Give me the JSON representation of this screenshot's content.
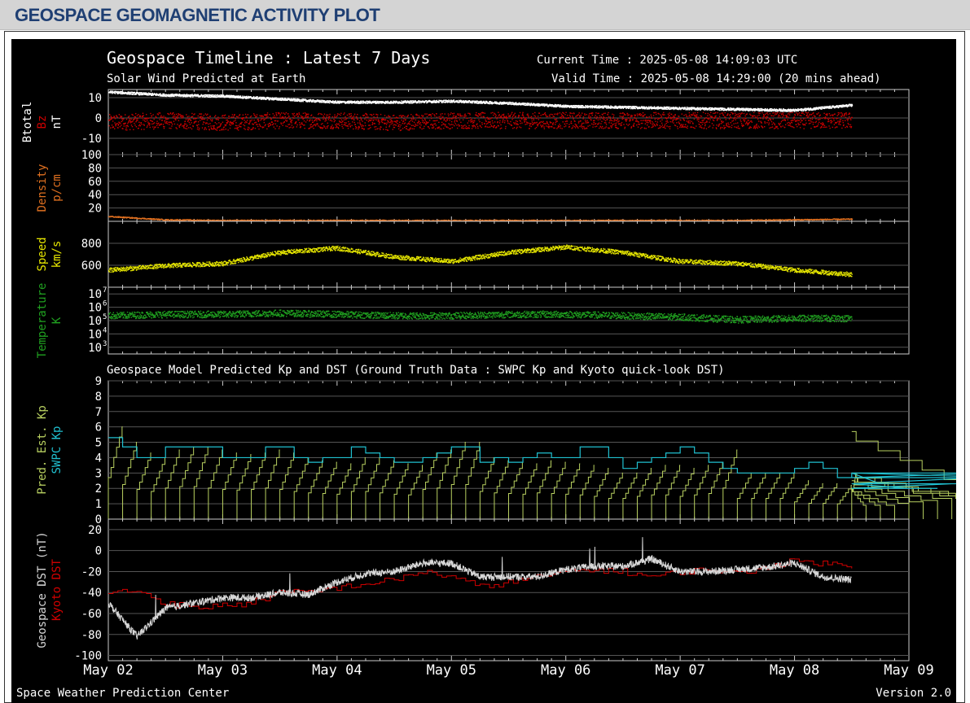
{
  "header": {
    "title": "GEOSPACE GEOMAGNETIC ACTIVITY PLOT"
  },
  "plot": {
    "title": "Geospace Timeline : Latest 7 Days",
    "subtitle": "Solar Wind Predicted at Earth",
    "current_time": "Current Time : 2025-05-08 14:09:03 UTC",
    "valid_time": "Valid Time : 2025-05-08 14:29:00 (20 mins ahead)",
    "section2_title": "Geospace Model Predicted Kp and DST (Ground Truth Data : SWPC Kp and Kyoto quick-look DST)",
    "footer_left": "Space Weather Prediction Center",
    "footer_right": "Version 2.0",
    "x_ticks": [
      "May 02",
      "May 03",
      "May 04",
      "May 05",
      "May 06",
      "May 07",
      "May 08",
      "May 09"
    ]
  },
  "colors": {
    "background": "#000000",
    "btotal": "#ffffff",
    "bz": "#cc0000",
    "density": "#e07020",
    "speed": "#e8e800",
    "temperature": "#20a020",
    "pred_kp": "#b8d060",
    "swpc_kp": "#20c0d0",
    "geospace_dst": "#d8d8d8",
    "kyoto_dst": "#d00000",
    "grid": "#555555"
  },
  "chart_data": [
    {
      "type": "scatter",
      "panel": "magnetic_field",
      "ylabel_parts": [
        "Btotal",
        "Bz",
        "nT"
      ],
      "y_ticks": [
        "10",
        "0",
        "-10"
      ],
      "ylim": [
        -18,
        14
      ],
      "x": [
        0,
        0.5,
        1,
        1.5,
        2,
        2.5,
        3,
        3.5,
        4,
        4.5,
        5,
        5.5,
        6,
        6.5
      ],
      "series": [
        {
          "name": "Btotal",
          "values": [
            13,
            11.5,
            11,
            9.5,
            8,
            8,
            8.5,
            7.5,
            6,
            5.5,
            5,
            4.5,
            4,
            6.5
          ]
        },
        {
          "name": "Bz",
          "values": [
            -2,
            -1,
            -2,
            -1,
            -1,
            -2,
            -1,
            -1,
            -1,
            -1,
            -1,
            -1,
            -1,
            -1
          ]
        }
      ]
    },
    {
      "type": "scatter",
      "panel": "density",
      "ylabel_parts": [
        "Density",
        "p/cm"
      ],
      "y_ticks": [
        "100",
        "80",
        "60",
        "40",
        "20"
      ],
      "ylim": [
        0,
        100
      ],
      "x": [
        0,
        0.5,
        1,
        1.5,
        2,
        2.5,
        3,
        3.5,
        4,
        4.5,
        5,
        5.5,
        6,
        6.5
      ],
      "series": [
        {
          "name": "Density",
          "values": [
            8,
            3,
            2,
            2,
            2,
            2,
            2,
            2,
            2,
            2,
            2,
            2,
            3,
            4
          ]
        }
      ]
    },
    {
      "type": "scatter",
      "panel": "speed",
      "ylabel_parts": [
        "Speed",
        "km/s"
      ],
      "y_ticks": [
        "800",
        "600"
      ],
      "ylim": [
        400,
        1000
      ],
      "x": [
        0,
        0.5,
        1,
        1.5,
        2,
        2.5,
        3,
        3.5,
        4,
        4.5,
        5,
        5.5,
        6,
        6.5
      ],
      "series": [
        {
          "name": "Speed",
          "values": [
            560,
            600,
            620,
            720,
            760,
            680,
            640,
            720,
            770,
            720,
            640,
            620,
            560,
            520
          ]
        }
      ]
    },
    {
      "type": "scatter",
      "panel": "temperature",
      "ylabel_parts": [
        "Temperature",
        "K"
      ],
      "y_ticks": [
        "10",
        "10",
        "10",
        "10",
        "10"
      ],
      "y_tick_exponents": [
        "7",
        "6",
        "5",
        "4",
        "3"
      ],
      "log_scale": true,
      "ylim": [
        2.5,
        7.5
      ],
      "x": [
        0,
        0.5,
        1,
        1.5,
        2,
        2.5,
        3,
        3.5,
        4,
        4.5,
        5,
        5.5,
        6,
        6.5
      ],
      "series": [
        {
          "name": "Temperature (log10 K)",
          "values": [
            5.4,
            5.5,
            5.5,
            5.6,
            5.5,
            5.4,
            5.4,
            5.5,
            5.5,
            5.4,
            5.3,
            5.1,
            5.2,
            5.2
          ]
        }
      ]
    },
    {
      "type": "line",
      "panel": "kp",
      "ylabel_parts": [
        "Pred. Est. Kp",
        "SWPC Kp"
      ],
      "y_ticks": [
        "9",
        "8",
        "7",
        "6",
        "5",
        "4",
        "3",
        "2",
        "1",
        "0"
      ],
      "ylim": [
        0,
        9
      ],
      "series": [
        {
          "name": "SWPC Kp",
          "step_hours": 3,
          "values": [
            5.3,
            4.7,
            4,
            4,
            4.7,
            4.7,
            4.7,
            4.7,
            4,
            4,
            4,
            4.7,
            4.7,
            4,
            3.7,
            4,
            4,
            4.7,
            4.3,
            4,
            3.7,
            3.7,
            4,
            4.3,
            4.7,
            4.7,
            3.7,
            4,
            3.7,
            4,
            4.3,
            4,
            4,
            4.7,
            4.7,
            4,
            3.3,
            3.7,
            4,
            4.3,
            4.7,
            4.3,
            3.7,
            3.3,
            3,
            3,
            3,
            3,
            3.3,
            3.7,
            3.3,
            2.7,
            3,
            3,
            2.3,
            2.3,
            2,
            2,
            2,
            2.3,
            2.3,
            2.7,
            3,
            2.7
          ]
        },
        {
          "name": "Pred. Est. Kp",
          "note_cycle": "resets to 0 every 3 h",
          "peaks": [
            6,
            5,
            4.3,
            4,
            4.5,
            4.7,
            4.7,
            4.5,
            4.3,
            4.2,
            4.3,
            4.5,
            4.3,
            4,
            3.8,
            3.7,
            3.6,
            4,
            4,
            3.8,
            3.6,
            3.5,
            4.3,
            4.5,
            5,
            5,
            4,
            3.8,
            3.7,
            3.6,
            3.8,
            3.7,
            3.6,
            3.5,
            3.3,
            3,
            3,
            3.3,
            3.5,
            3.5,
            3.3,
            3.5,
            3.7,
            4.5,
            3,
            3,
            3,
            3,
            2.5,
            2.3,
            2.3,
            2.2,
            2,
            2,
            2,
            2,
            2.3,
            2.5,
            2.7,
            3,
            5.7,
            3,
            2.7,
            2.7
          ]
        }
      ]
    },
    {
      "type": "line",
      "panel": "dst",
      "ylabel_parts": [
        "Geospace DST (nT)",
        "Kyoto DST"
      ],
      "y_ticks": [
        "20",
        "0",
        "-20",
        "-40",
        "-60",
        "-80",
        "-100"
      ],
      "ylim": [
        -105,
        30
      ],
      "x": [
        0,
        0.25,
        0.5,
        0.75,
        1,
        1.25,
        1.5,
        1.75,
        2,
        2.25,
        2.5,
        2.75,
        3,
        3.25,
        3.5,
        3.75,
        4,
        4.25,
        4.5,
        4.75,
        5,
        5.25,
        5.5,
        5.75,
        6,
        6.25,
        6.5
      ],
      "series": [
        {
          "name": "Geospace DST",
          "values": [
            -50,
            -82,
            -55,
            -50,
            -45,
            -45,
            -40,
            -42,
            -30,
            -22,
            -20,
            -12,
            -12,
            -25,
            -25,
            -25,
            -18,
            -15,
            -15,
            -8,
            -20,
            -20,
            -18,
            -16,
            -12,
            -25,
            -28
          ]
        },
        {
          "name": "Kyoto DST",
          "values": [
            -40,
            -38,
            -50,
            -55,
            -52,
            -50,
            -40,
            -40,
            -35,
            -32,
            -28,
            -20,
            -25,
            -35,
            -30,
            -25,
            -20,
            -18,
            -20,
            -25,
            -20,
            -18,
            -22,
            -15,
            -10,
            -12,
            -15
          ]
        }
      ]
    }
  ]
}
